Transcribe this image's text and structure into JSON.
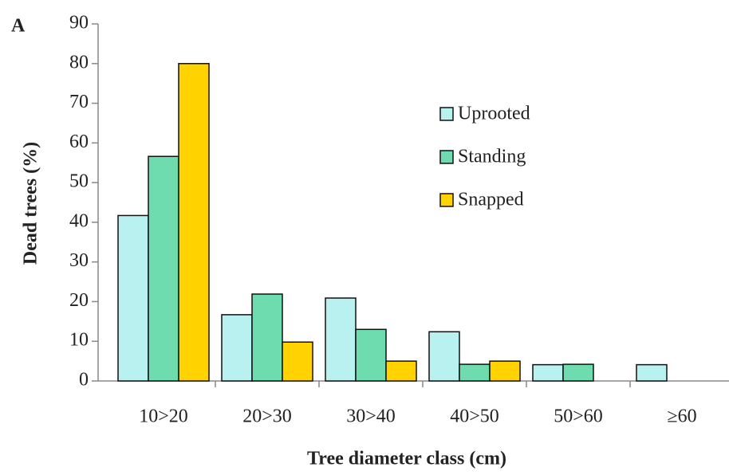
{
  "chart_data": {
    "type": "bar",
    "panel_label": "A",
    "x_label": "Tree diameter class (cm)",
    "y_label": "Dead trees (%)",
    "categories": [
      "10>20",
      "20>30",
      "30>40",
      "40>50",
      "50>60",
      "≥60"
    ],
    "series": [
      {
        "name": "Uprooted",
        "color": "#b9f1f1",
        "values": [
          41.7,
          16.7,
          20.9,
          12.4,
          4.1,
          4.1
        ]
      },
      {
        "name": "Standing",
        "color": "#6fdcaf",
        "values": [
          56.6,
          21.9,
          13,
          4.2,
          4.2,
          null
        ]
      },
      {
        "name": "Snapped",
        "color": "#ffd200",
        "values": [
          80,
          9.8,
          5,
          5,
          null,
          null
        ]
      }
    ],
    "ylim": [
      0,
      90
    ],
    "yticks": [
      0,
      10,
      20,
      30,
      40,
      50,
      60,
      70,
      80,
      90
    ],
    "grid": false
  }
}
